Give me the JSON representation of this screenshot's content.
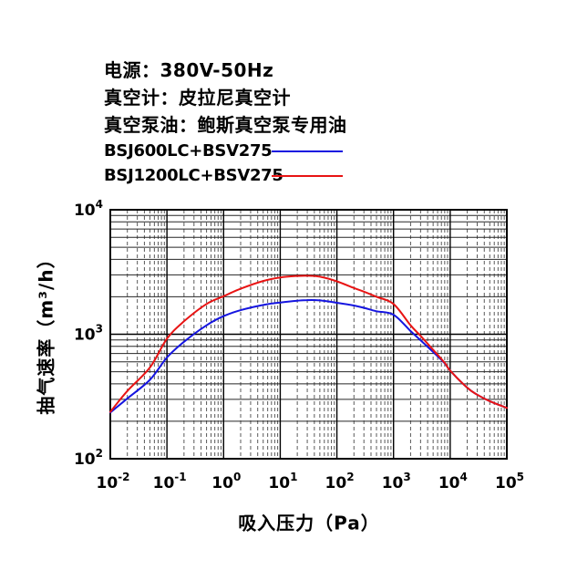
{
  "header": {
    "info_lines": [
      "电源：380V-50Hz",
      "真空计：皮拉尼真空计",
      "真空泵油：鲍斯真空泵专用油"
    ]
  },
  "legend": [
    {
      "label": "BSJ600LC+BSV275",
      "color": "#1515e0"
    },
    {
      "label": "BSJ1200LC+BSV275",
      "color": "#e81414"
    }
  ],
  "chart_data": {
    "type": "line",
    "title": "",
    "xlabel": "吸入压力（Pa）",
    "ylabel": "抽气速率（m³/h）",
    "x_scale": "log",
    "y_scale": "log",
    "xlim": [
      0.01,
      100000
    ],
    "ylim": [
      100,
      10000
    ],
    "x_tick_labels": [
      "10^-2",
      "10^-1",
      "10^0",
      "10^1",
      "10^2",
      "10^3",
      "10^4",
      "10^5"
    ],
    "y_tick_labels": [
      "10^2",
      "10^3",
      "10^4"
    ],
    "grid": {
      "major": "solid",
      "minor_vertical": "dashed",
      "minor_horizontal": "solid"
    },
    "x": [
      0.01,
      0.02,
      0.05,
      0.1,
      0.2,
      0.5,
      1,
      2,
      5,
      10,
      20,
      30,
      50,
      100,
      200,
      300,
      500,
      1000,
      2000,
      3000,
      5000,
      8000,
      10000,
      20000,
      30000,
      50000,
      100000
    ],
    "series": [
      {
        "name": "BSJ600LC+BSV275",
        "color": "#1515e0",
        "values": [
          235,
          305,
          430,
          650,
          870,
          1180,
          1400,
          1560,
          1720,
          1800,
          1860,
          1880,
          1870,
          1790,
          1700,
          1630,
          1530,
          1435,
          1060,
          895,
          720,
          585,
          510,
          372,
          327,
          290,
          256
        ]
      },
      {
        "name": "BSJ1200LC+BSV275",
        "color": "#e81414",
        "values": [
          238,
          350,
          540,
          920,
          1270,
          1750,
          2020,
          2320,
          2680,
          2860,
          2940,
          2950,
          2900,
          2660,
          2350,
          2200,
          2000,
          1750,
          1180,
          970,
          750,
          590,
          510,
          372,
          327,
          290,
          256
        ]
      }
    ],
    "plot_colors": {
      "border": "#000000",
      "grid_major": "#000000",
      "grid_minor_h": "#262626",
      "grid_minor_v": "#5a5a5a"
    }
  }
}
